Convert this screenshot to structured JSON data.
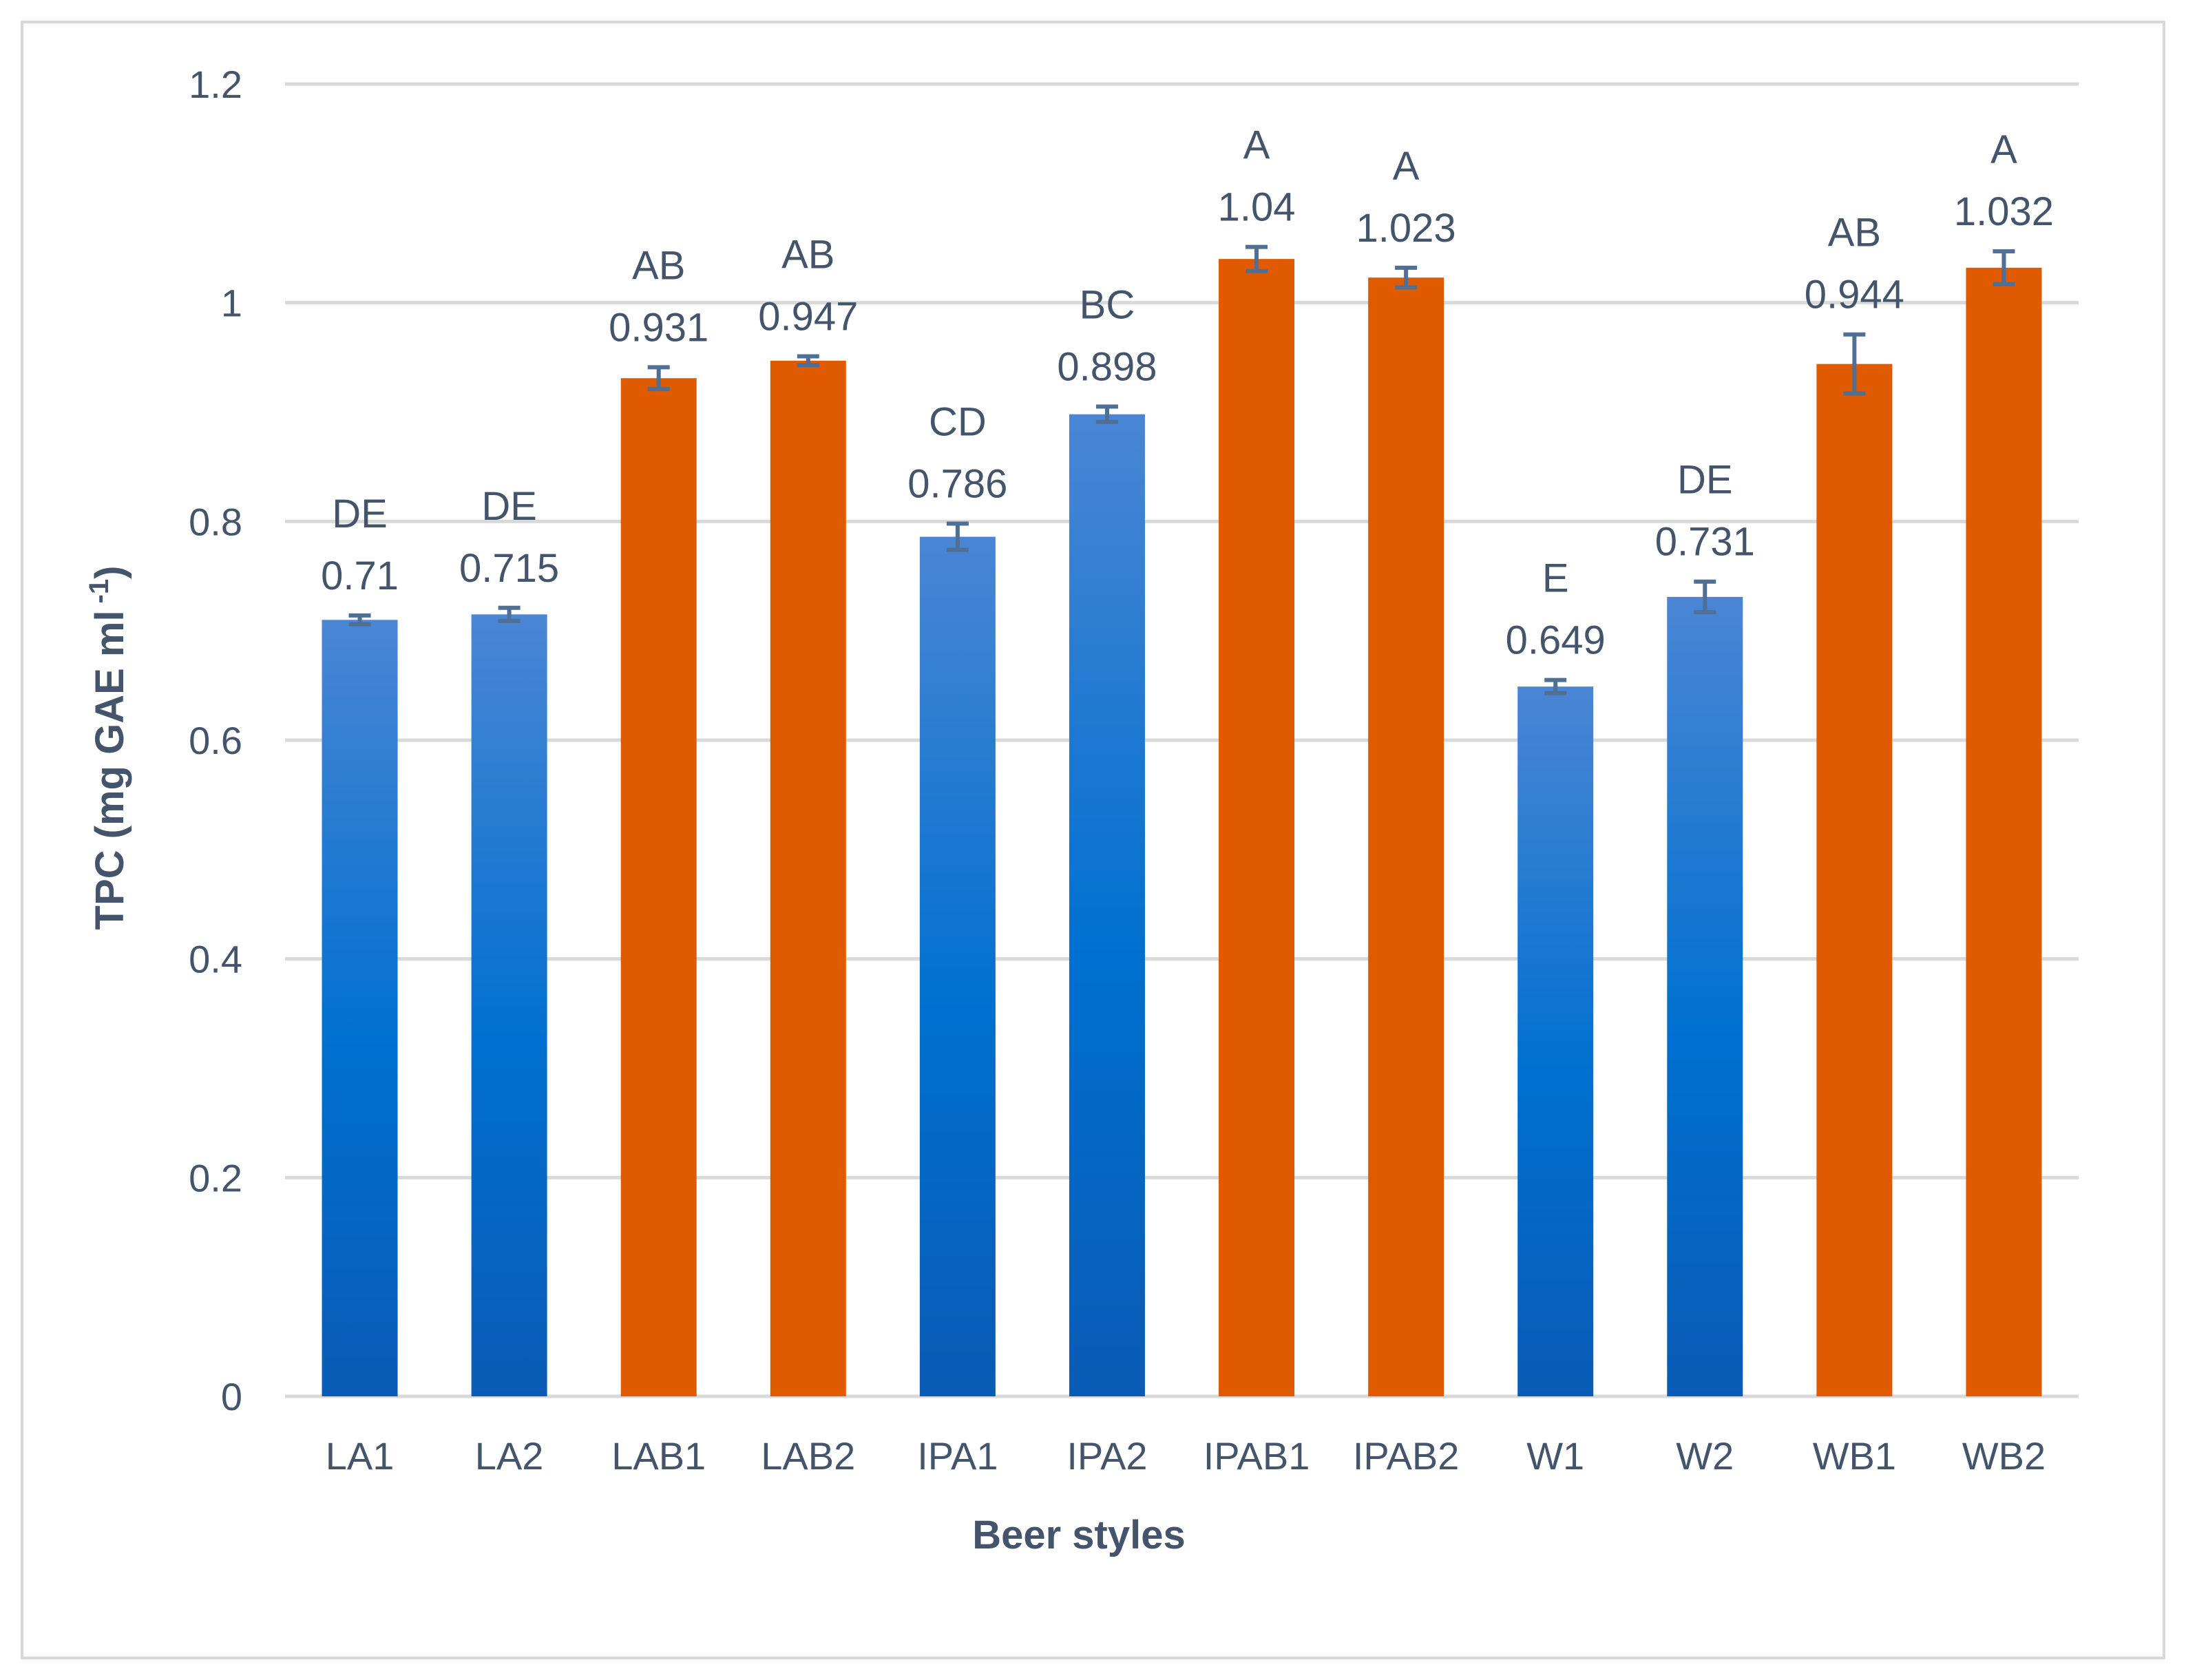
{
  "chart_data": {
    "type": "bar",
    "title": "",
    "xlabel": "Beer styles",
    "ylabel": "TPC (mg GAE ml",
    "ylabel_sup": "-1",
    "ylabel_close": ")",
    "ylim": [
      0,
      1.2
    ],
    "yticks": [
      0,
      0.2,
      0.4,
      0.6,
      0.8,
      1,
      1.2
    ],
    "ytick_labels": [
      "0",
      "0.2",
      "0.4",
      "0.6",
      "0.8",
      "1",
      "1.2"
    ],
    "grid": true,
    "categories": [
      "LA1",
      "LA2",
      "LAB1",
      "LAB2",
      "IPA1",
      "IPA2",
      "IPAB1",
      "IPAB2",
      "W1",
      "W2",
      "WB1",
      "WB2"
    ],
    "values": [
      0.71,
      0.715,
      0.931,
      0.947,
      0.786,
      0.898,
      1.04,
      1.023,
      0.649,
      0.731,
      0.944,
      1.032
    ],
    "value_labels": [
      "0.71",
      "0.715",
      "0.931",
      "0.947",
      "0.786",
      "0.898",
      "1.04",
      "1.023",
      "0.649",
      "0.731",
      "0.944",
      "1.032"
    ],
    "errors": [
      0.004,
      0.006,
      0.01,
      0.004,
      0.012,
      0.007,
      0.011,
      0.009,
      0.006,
      0.014,
      0.027,
      0.015
    ],
    "group_letters": [
      "DE",
      "DE",
      "AB",
      "AB",
      "CD",
      "BC",
      "A",
      "A",
      "E",
      "DE",
      "AB",
      "A"
    ],
    "bar_styles": [
      "blue",
      "blue",
      "orange",
      "orange",
      "blue",
      "blue",
      "orange",
      "orange",
      "blue",
      "blue",
      "orange",
      "orange"
    ],
    "colors": {
      "blue_top": "#4a86d4",
      "blue_mid": "#0070d0",
      "blue_bottom": "#0a5bb5",
      "orange": "#e05a00",
      "text": "#44546a",
      "grid": "#d9d9d9",
      "error_bar": "#4f6f95"
    }
  }
}
